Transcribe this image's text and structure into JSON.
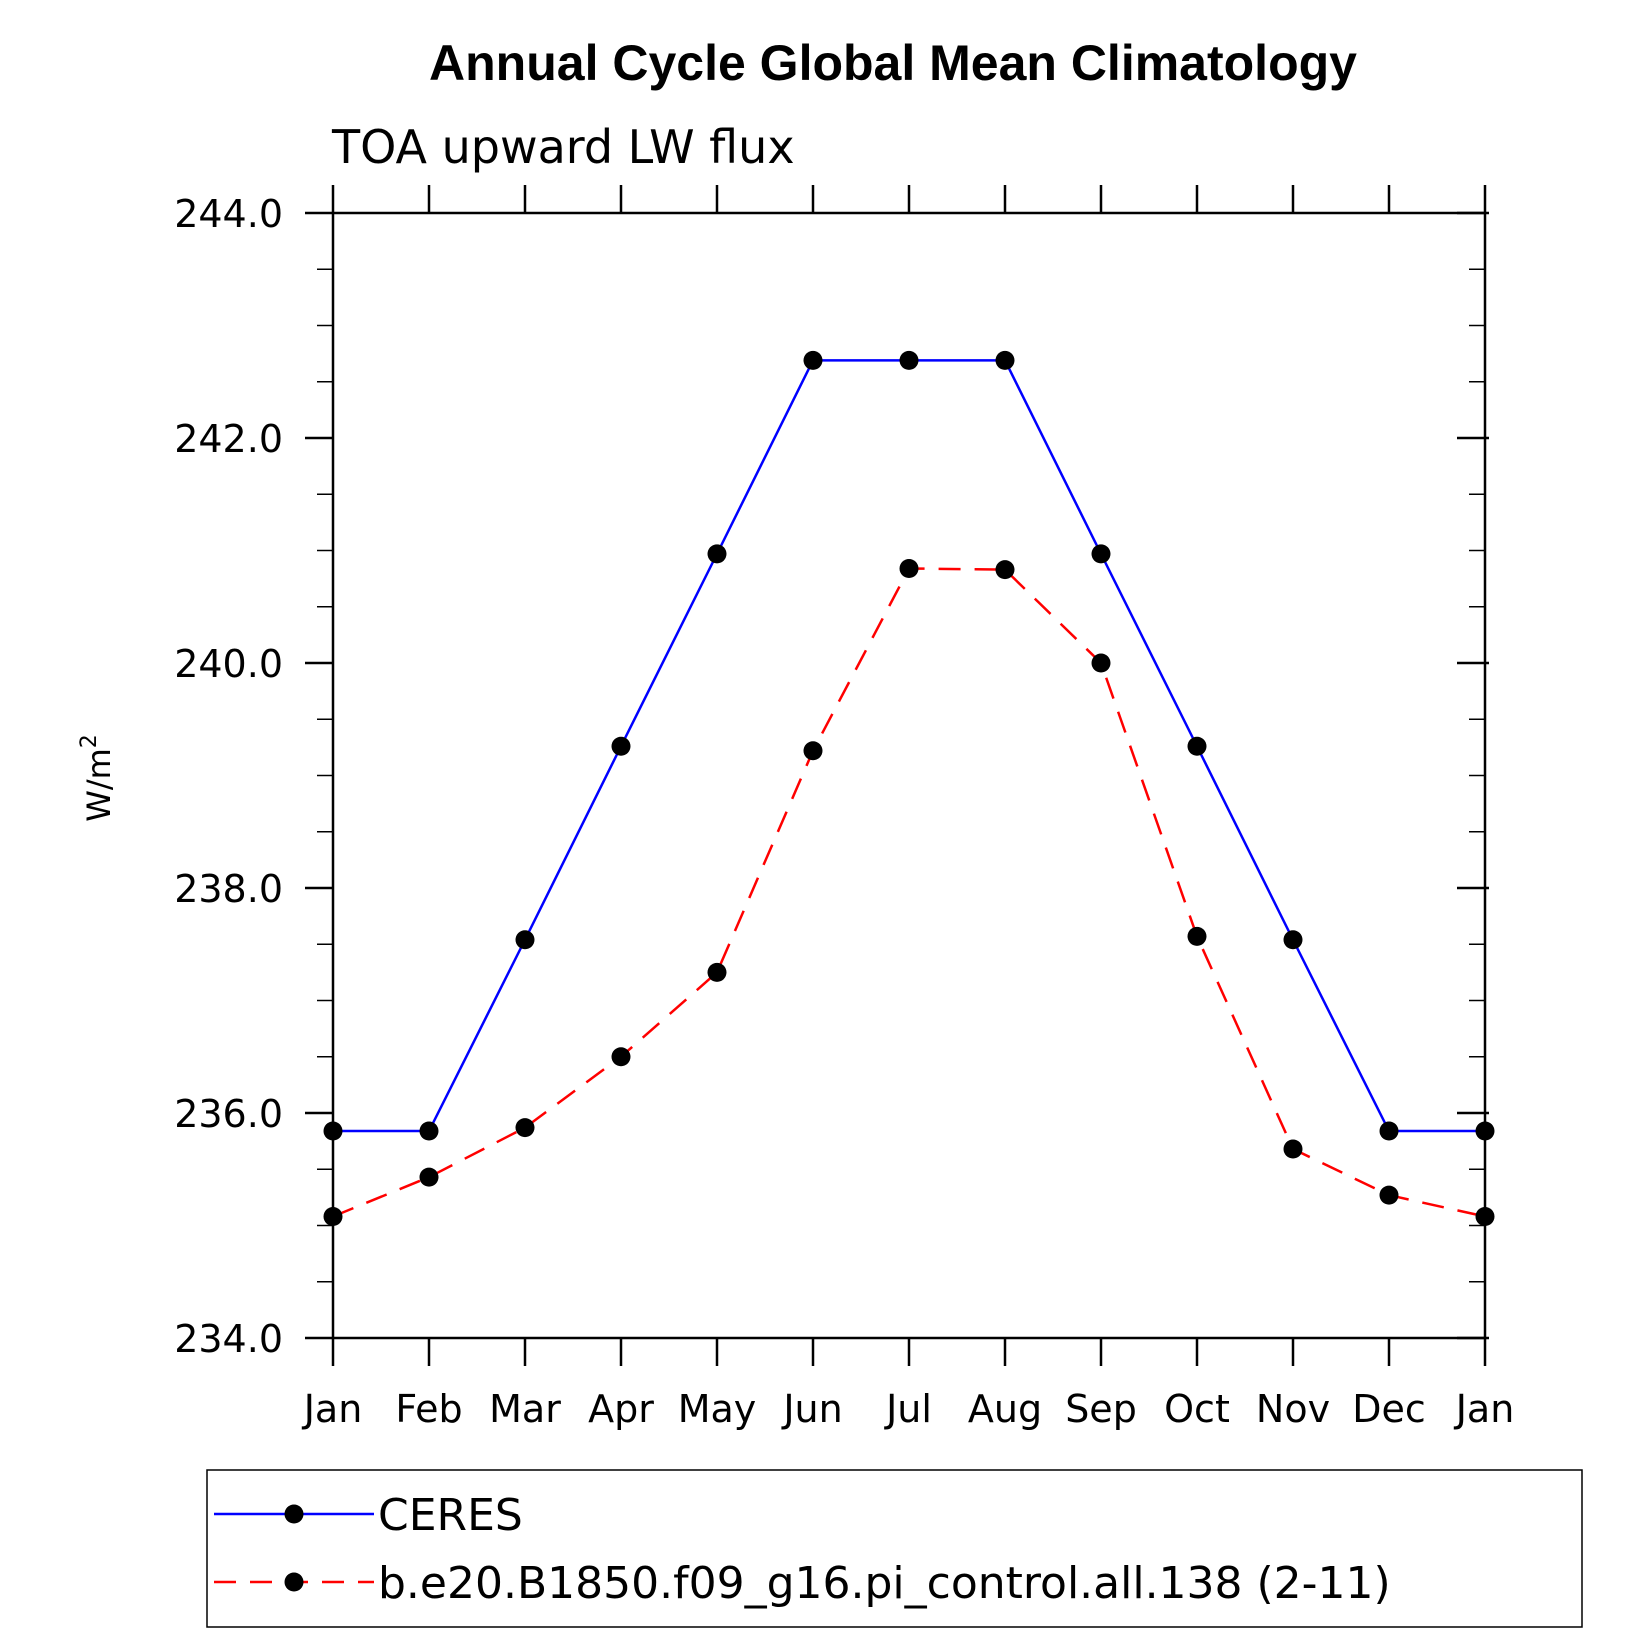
{
  "chart_data": {
    "type": "line",
    "title": "Annual Cycle Global Mean Climatology",
    "subtitle": "TOA upward LW flux",
    "ylabel_main": "W/m",
    "ylabel_sup": "2",
    "xlabel": "",
    "categories": [
      "Jan",
      "Feb",
      "Mar",
      "Apr",
      "May",
      "Jun",
      "Jul",
      "Aug",
      "Sep",
      "Oct",
      "Nov",
      "Dec",
      "Jan"
    ],
    "ylim": [
      234.0,
      244.0
    ],
    "yticks": [
      "234.0",
      "236.0",
      "238.0",
      "240.0",
      "242.0",
      "244.0"
    ],
    "ytick_values": [
      234.0,
      236.0,
      238.0,
      240.0,
      242.0,
      244.0
    ],
    "yminor_step": 0.5,
    "grid": false,
    "legend_position": "bottom",
    "series": [
      {
        "name": "CERES",
        "color": "#0000ff",
        "dash": "solid",
        "marker": "filled-circle",
        "values": [
          235.84,
          235.84,
          237.54,
          239.26,
          240.97,
          242.69,
          242.69,
          242.69,
          240.97,
          239.26,
          237.54,
          235.84,
          235.84
        ]
      },
      {
        "name": "b.e20.B1850.f09_g16.pi_control.all.138 (2-11)",
        "color": "#ff0000",
        "dash": "dashed",
        "marker": "filled-circle",
        "values": [
          235.08,
          235.43,
          235.87,
          236.5,
          237.25,
          239.22,
          240.84,
          240.83,
          240.0,
          237.57,
          235.68,
          235.27,
          235.08
        ]
      }
    ]
  }
}
